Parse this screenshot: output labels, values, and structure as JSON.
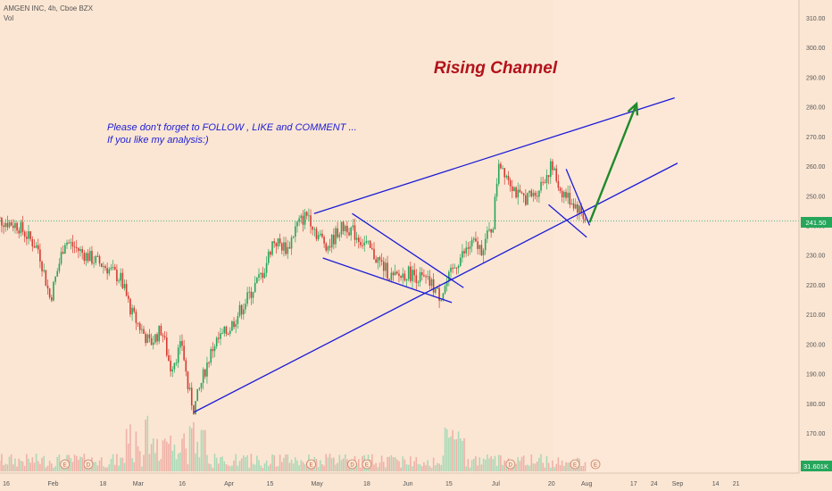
{
  "header": {
    "symbol_line": "AMGEN INC, 4h, Cboe BZX",
    "volume_label": "Vol"
  },
  "annotations": {
    "pattern_title": "Rising Channel",
    "note_line1": "Please don't forget  to FOLLOW , LIKE and COMMENT ...",
    "note_line2": "If you like my analysis:)"
  },
  "colors": {
    "background": "#fbe6d3",
    "future_zone": "#fde8d8",
    "up_candle": "#26a65b",
    "down_candle": "#d43b32",
    "trendline": "#1c1cd6",
    "target_arrow": "#1f8a2c",
    "price_line": "#26a65b",
    "title_text": "#b3121b",
    "note_text": "#1c1cd6"
  },
  "price_axis": {
    "ticks": [
      "310.00",
      "300.00",
      "290.00",
      "280.00",
      "270.00",
      "260.00",
      "250.00",
      "240.00",
      "230.00",
      "220.00",
      "210.00",
      "200.00",
      "190.00",
      "180.00",
      "170.00"
    ],
    "last_price": "241.50",
    "last_volume": "31.601K"
  },
  "time_axis": {
    "ticks": [
      "16",
      "Feb",
      "18",
      "Mar",
      "16",
      "Apr",
      "15",
      "May",
      "18",
      "Jun",
      "15",
      "Jul",
      "20",
      "Aug",
      "17",
      "24",
      "Sep",
      "14",
      "21"
    ]
  },
  "event_markers": [
    "E",
    "D",
    "E",
    "D",
    "E",
    "D",
    "E",
    "E"
  ],
  "chart_data": {
    "type": "candlestick",
    "symbol": "AMGEN INC",
    "timeframe": "4h",
    "exchange": "Cboe BZX",
    "ylim": [
      165,
      315
    ],
    "price_path": [
      {
        "date": "Jan 13",
        "price": 242
      },
      {
        "date": "Jan 20",
        "price": 240
      },
      {
        "date": "Jan 27",
        "price": 232
      },
      {
        "date": "Jan 31",
        "price": 215
      },
      {
        "date": "Feb 5",
        "price": 235
      },
      {
        "date": "Feb 12",
        "price": 230
      },
      {
        "date": "Feb 19",
        "price": 226
      },
      {
        "date": "Feb 24",
        "price": 222
      },
      {
        "date": "Feb 28",
        "price": 210
      },
      {
        "date": "Mar 5",
        "price": 200
      },
      {
        "date": "Mar 9",
        "price": 205
      },
      {
        "date": "Mar 12",
        "price": 192
      },
      {
        "date": "Mar 16",
        "price": 200
      },
      {
        "date": "Mar 18",
        "price": 185
      },
      {
        "date": "Mar 20",
        "price": 178
      },
      {
        "date": "Mar 24",
        "price": 192
      },
      {
        "date": "Mar 27",
        "price": 200
      },
      {
        "date": "Apr 1",
        "price": 205
      },
      {
        "date": "Apr 7",
        "price": 215
      },
      {
        "date": "Apr 13",
        "price": 225
      },
      {
        "date": "Apr 16",
        "price": 235
      },
      {
        "date": "Apr 21",
        "price": 232
      },
      {
        "date": "Apr 24",
        "price": 240
      },
      {
        "date": "Apr 28",
        "price": 244
      },
      {
        "date": "May 1",
        "price": 237
      },
      {
        "date": "May 5",
        "price": 233
      },
      {
        "date": "May 8",
        "price": 238
      },
      {
        "date": "May 11",
        "price": 240
      },
      {
        "date": "May 15",
        "price": 236
      },
      {
        "date": "May 18",
        "price": 233
      },
      {
        "date": "May 22",
        "price": 228
      },
      {
        "date": "May 27",
        "price": 222
      },
      {
        "date": "Jun 1",
        "price": 224
      },
      {
        "date": "Jun 4",
        "price": 223
      },
      {
        "date": "Jun 9",
        "price": 220
      },
      {
        "date": "Jun 12",
        "price": 216
      },
      {
        "date": "Jun 15",
        "price": 222
      },
      {
        "date": "Jun 18",
        "price": 228
      },
      {
        "date": "Jun 23",
        "price": 234
      },
      {
        "date": "Jun 26",
        "price": 232
      },
      {
        "date": "Jun 30",
        "price": 240
      },
      {
        "date": "Jul 2",
        "price": 262
      },
      {
        "date": "Jul 6",
        "price": 255
      },
      {
        "date": "Jul 9",
        "price": 249
      },
      {
        "date": "Jul 14",
        "price": 250
      },
      {
        "date": "Jul 17",
        "price": 255
      },
      {
        "date": "Jul 20",
        "price": 260
      },
      {
        "date": "Jul 23",
        "price": 252
      },
      {
        "date": "Jul 27",
        "price": 248
      },
      {
        "date": "Jul 29",
        "price": 246
      },
      {
        "date": "Aug 1",
        "price": 241.5
      }
    ],
    "trendlines": [
      {
        "name": "channel-upper",
        "from": {
          "date": "Apr 30",
          "price": 244
        },
        "to": {
          "date": "Aug 31",
          "price": 283
        }
      },
      {
        "name": "channel-lower",
        "from": {
          "date": "Mar 20",
          "price": 177
        },
        "to": {
          "date": "Sep 1",
          "price": 261
        }
      },
      {
        "name": "wedge1-upper",
        "from": {
          "date": "May 13",
          "price": 244
        },
        "to": {
          "date": "Jun 20",
          "price": 219
        }
      },
      {
        "name": "wedge1-lower",
        "from": {
          "date": "May 3",
          "price": 229
        },
        "to": {
          "date": "Jun 16",
          "price": 214
        }
      },
      {
        "name": "wedge2-upper",
        "from": {
          "date": "Jul 25",
          "price": 259
        },
        "to": {
          "date": "Aug 2",
          "price": 240
        }
      },
      {
        "name": "wedge2-lower",
        "from": {
          "date": "Jul 19",
          "price": 247
        },
        "to": {
          "date": "Aug 1",
          "price": 236
        }
      }
    ],
    "target_arrow": {
      "from": {
        "date": "Aug 2",
        "price": 241
      },
      "to": {
        "date": "Aug 18",
        "price": 281
      }
    },
    "current_price": 241.5
  }
}
